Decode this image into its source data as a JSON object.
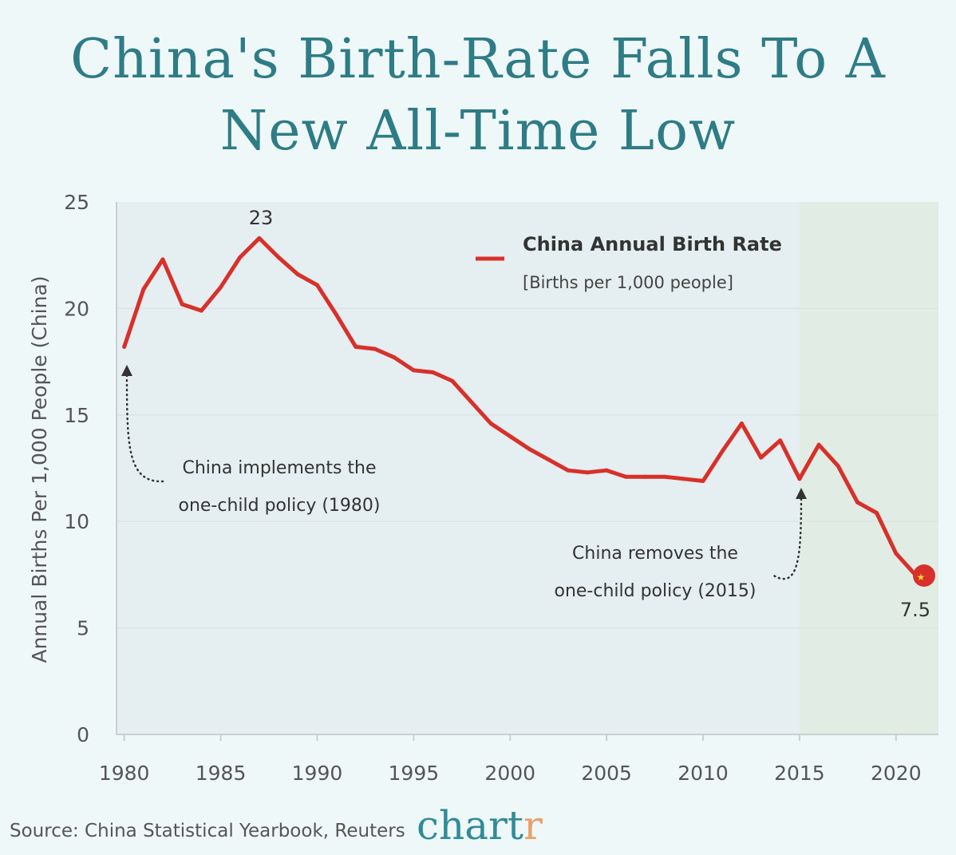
{
  "title": [
    "China's Birth-Rate Falls To A",
    "New All-Time Low"
  ],
  "source": "Source: China Statistical Yearbook, Reuters",
  "logo": "chartr",
  "chart_data": {
    "type": "line",
    "ylabel": "Annual Births Per 1,000 People (China)",
    "xlabel": "",
    "xlim": [
      1979.6,
      2022.2
    ],
    "ylim": [
      0,
      25
    ],
    "xticks": [
      1980,
      1985,
      1990,
      1995,
      2000,
      2005,
      2010,
      2015,
      2020
    ],
    "yticks": [
      0,
      5,
      10,
      15,
      20,
      25
    ],
    "grid": true,
    "legend": {
      "position": "top-right",
      "label": "China Annual Birth Rate",
      "sublabel": "[Births per 1,000 people]"
    },
    "series": [
      {
        "name": "China Annual Birth Rate",
        "color": "#d8302a",
        "x": [
          1980,
          1981,
          1982,
          1983,
          1984,
          1985,
          1986,
          1987,
          1988,
          1989,
          1990,
          1991,
          1992,
          1993,
          1994,
          1995,
          1996,
          1997,
          1998,
          1999,
          2000,
          2001,
          2002,
          2003,
          2004,
          2005,
          2006,
          2007,
          2008,
          2009,
          2010,
          2011,
          2012,
          2013,
          2014,
          2015,
          2016,
          2017,
          2018,
          2019,
          2020,
          2021
        ],
        "y": [
          18.2,
          20.9,
          22.3,
          20.2,
          19.9,
          21.0,
          22.4,
          23.3,
          22.4,
          21.6,
          21.1,
          19.7,
          18.2,
          18.1,
          17.7,
          17.1,
          17.0,
          16.6,
          15.6,
          14.6,
          14.0,
          13.4,
          12.9,
          12.4,
          12.3,
          12.4,
          12.1,
          12.1,
          12.1,
          12.0,
          11.9,
          13.3,
          14.6,
          13.0,
          13.8,
          12.0,
          13.6,
          12.6,
          10.9,
          10.4,
          8.5,
          7.5
        ]
      }
    ],
    "shaded_region": {
      "from": 2015,
      "to": 2022.2,
      "color": "#e1ede4"
    },
    "annotations": [
      {
        "text": "23",
        "x": 1987,
        "y": 23.3
      },
      {
        "text": "7.5",
        "x": 2021,
        "y": 7.5
      },
      {
        "lines": [
          "China implements the",
          "one-child policy (1980)"
        ],
        "x": 1980
      },
      {
        "lines": [
          "China removes the",
          "one-child policy (2015)"
        ],
        "x": 2015
      }
    ]
  }
}
